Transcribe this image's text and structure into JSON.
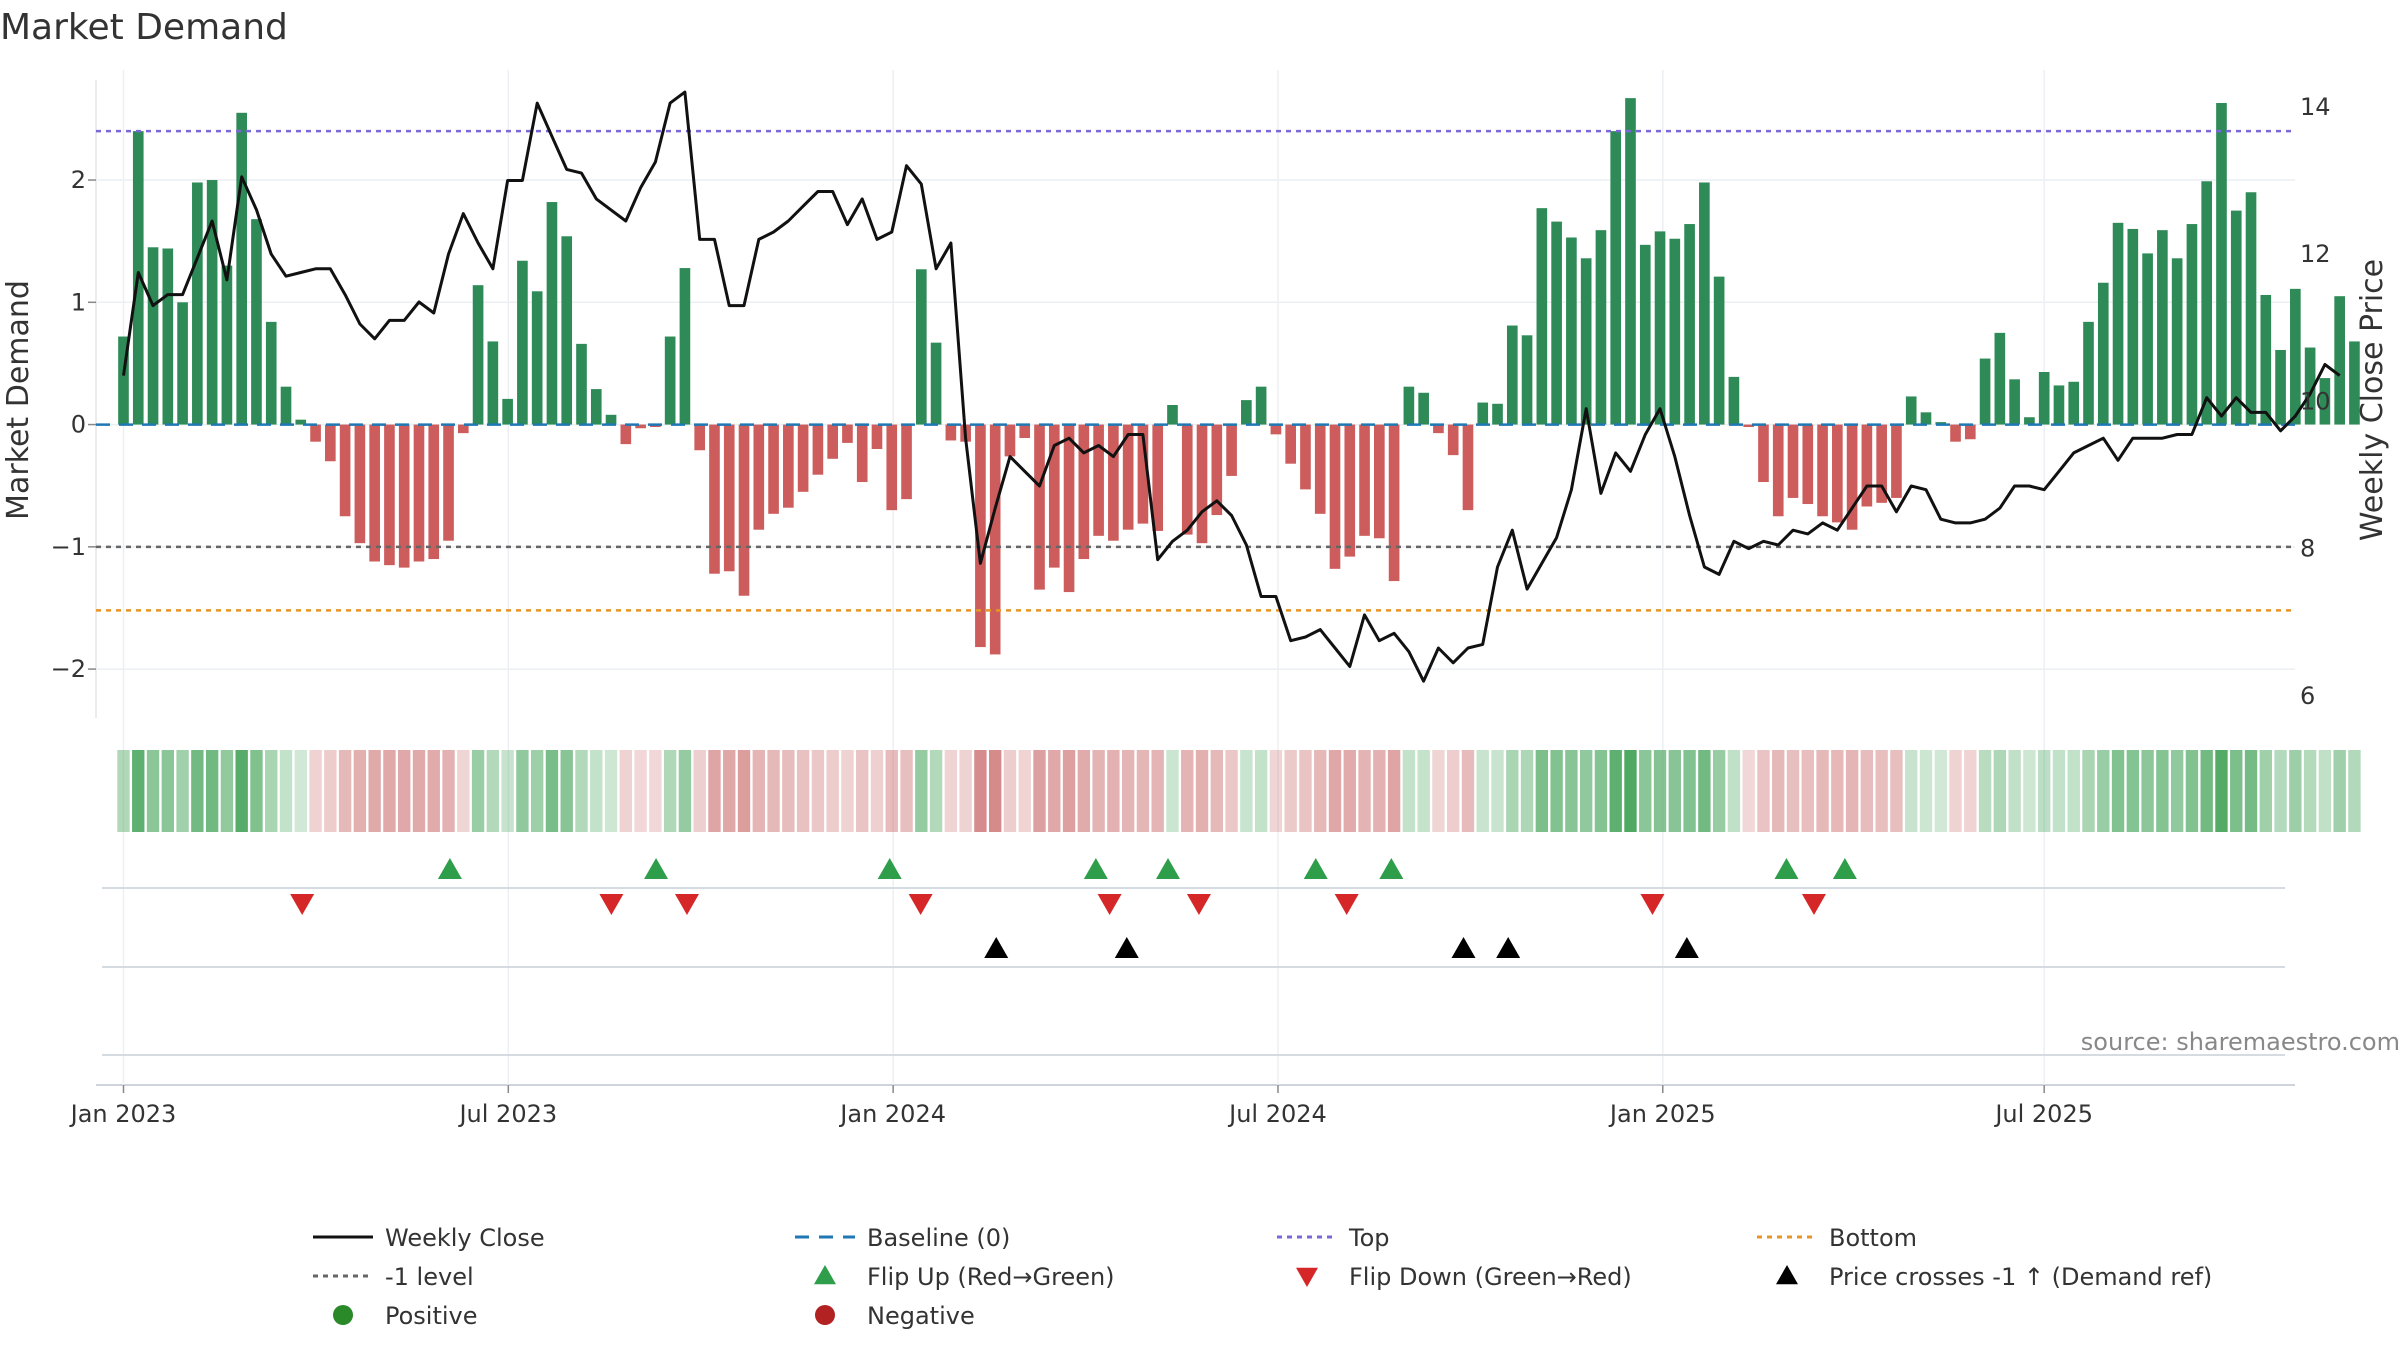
{
  "chart_data": {
    "type": "bar",
    "title": "Market Demand",
    "ylabel": "Market Demand",
    "y2label": "Weekly Close Price",
    "ylim": [
      -2.4,
      2.9
    ],
    "y2lim": [
      5.7,
      14.5
    ],
    "yticks": [
      -2,
      -1,
      0,
      1,
      2
    ],
    "yticklabels": [
      "−2",
      "−1",
      "0",
      "1",
      "2"
    ],
    "y2ticks": [
      6,
      8,
      10,
      12,
      14
    ],
    "y2ticklabels": [
      "6",
      "8",
      "10",
      "12",
      "14"
    ],
    "xlim_days": [
      -8,
      632
    ],
    "xticks": [
      {
        "day": 0,
        "label": "Jan 2023"
      },
      {
        "day": 112,
        "label": "Jul 2023"
      },
      {
        "day": 224,
        "label": "Jan 2024"
      },
      {
        "day": 336,
        "label": "Jul 2024"
      },
      {
        "day": 448,
        "label": "Jan 2025"
      },
      {
        "day": 559,
        "label": "Jul 2025"
      }
    ],
    "x_start": "2023-01-01",
    "x_step_days": 4.3,
    "demand": [
      0.72,
      2.4,
      1.45,
      1.44,
      1.0,
      1.98,
      2.0,
      1.3,
      2.55,
      1.68,
      0.84,
      0.31,
      0.04,
      -0.14,
      -0.3,
      -0.75,
      -0.97,
      -1.12,
      -1.15,
      -1.17,
      -1.12,
      -1.1,
      -0.95,
      -0.07,
      1.14,
      0.68,
      0.21,
      1.34,
      1.09,
      1.82,
      1.54,
      0.66,
      0.29,
      0.08,
      -0.16,
      -0.03,
      -0.02,
      0.72,
      1.28,
      -0.21,
      -1.22,
      -1.2,
      -1.4,
      -0.86,
      -0.73,
      -0.68,
      -0.55,
      -0.41,
      -0.28,
      -0.15,
      -0.47,
      -0.2,
      -0.7,
      -0.61,
      1.27,
      0.67,
      -0.13,
      -0.14,
      -1.82,
      -1.88,
      -0.26,
      -0.11,
      -1.35,
      -1.17,
      -1.37,
      -1.1,
      -0.91,
      -0.95,
      -0.86,
      -0.81,
      -0.87,
      0.16,
      -0.9,
      -0.97,
      -0.74,
      -0.42,
      0.2,
      0.31,
      -0.08,
      -0.32,
      -0.53,
      -0.73,
      -1.18,
      -1.08,
      -0.91,
      -0.93,
      -1.28,
      0.31,
      0.26,
      -0.07,
      -0.25,
      -0.7,
      0.18,
      0.17,
      0.81,
      0.73,
      1.77,
      1.66,
      1.53,
      1.36,
      1.59,
      2.4,
      2.67,
      1.47,
      1.58,
      1.52,
      1.64,
      1.98,
      1.21,
      0.39,
      -0.02,
      -0.47,
      -0.75,
      -0.6,
      -0.65,
      -0.75,
      -0.8,
      -0.86,
      -0.67,
      -0.64,
      -0.6,
      0.23,
      0.1,
      0.02,
      -0.14,
      -0.12,
      0.54,
      0.75,
      0.37,
      0.06,
      0.43,
      0.32,
      0.35,
      0.84,
      1.16,
      1.65,
      1.6,
      1.4,
      1.59,
      1.36,
      1.64,
      1.99,
      2.63,
      1.75,
      1.9,
      1.06,
      0.61,
      1.11,
      0.63,
      0.38,
      1.05,
      0.68
    ],
    "close": [
      10.35,
      11.75,
      11.3,
      11.45,
      11.45,
      11.95,
      12.45,
      11.65,
      13.05,
      12.6,
      12.0,
      11.7,
      11.75,
      11.8,
      11.8,
      11.45,
      11.05,
      10.85,
      11.1,
      11.1,
      11.35,
      11.2,
      12.0,
      12.55,
      12.15,
      11.8,
      13.0,
      13.0,
      14.05,
      13.6,
      13.15,
      13.1,
      12.75,
      12.6,
      12.45,
      12.9,
      13.25,
      14.05,
      14.2,
      12.2,
      12.2,
      11.3,
      11.3,
      12.2,
      12.3,
      12.45,
      12.65,
      12.85,
      12.85,
      12.4,
      12.75,
      12.2,
      12.3,
      13.2,
      12.95,
      11.8,
      12.15,
      9.5,
      7.8,
      8.55,
      9.25,
      9.05,
      8.85,
      9.4,
      9.5,
      9.3,
      9.4,
      9.25,
      9.55,
      9.55,
      7.85,
      8.1,
      8.25,
      8.5,
      8.65,
      8.45,
      8.05,
      7.35,
      7.35,
      6.75,
      6.8,
      6.9,
      6.65,
      6.4,
      7.1,
      6.75,
      6.85,
      6.6,
      6.2,
      6.65,
      6.45,
      6.65,
      6.7,
      7.75,
      8.25,
      7.45,
      7.8,
      8.15,
      8.8,
      9.9,
      8.75,
      9.3,
      9.05,
      9.55,
      9.9,
      9.25,
      8.45,
      7.75,
      7.65,
      8.1,
      8.0,
      8.1,
      8.05,
      8.25,
      8.2,
      8.35,
      8.25,
      8.55,
      8.85,
      8.85,
      8.5,
      8.85,
      8.8,
      8.4,
      8.35,
      8.35,
      8.4,
      8.55,
      8.85,
      8.85,
      8.8,
      9.05,
      9.3,
      9.4,
      9.5,
      9.2,
      9.5,
      9.5,
      9.5,
      9.55,
      9.55,
      10.05,
      9.8,
      10.05,
      9.85,
      9.85,
      9.6,
      9.8,
      10.1,
      10.5,
      10.35
    ],
    "reference_lines": {
      "baseline": 0,
      "top": 2.4,
      "bottom": -1.52,
      "minus_one_level": -1
    },
    "flip_up_days": [
      95,
      155,
      223,
      283,
      304,
      347,
      369,
      484,
      501
    ],
    "flip_down_days": [
      52,
      142,
      164,
      232,
      287,
      313,
      356,
      445,
      492
    ],
    "price_cross_days": [
      254,
      292,
      390,
      403,
      455
    ],
    "source_text": "source: sharemaestro.com",
    "legend": [
      {
        "label": "Weekly Close",
        "style": "solid-line",
        "color": "#111111"
      },
      {
        "label": "Baseline (0)",
        "style": "dashed-line",
        "color": "#1f77b4"
      },
      {
        "label": "Top",
        "style": "dotted-line",
        "color": "#7b68d8"
      },
      {
        "label": "Bottom",
        "style": "dotted-line",
        "color": "#e69526"
      },
      {
        "label": "-1 level",
        "style": "dotted-line",
        "color": "#666666"
      },
      {
        "label": "Flip Up (Red→Green)",
        "style": "triangle-up",
        "color": "#2e9e4a"
      },
      {
        "label": "Flip Down (Green→Red)",
        "style": "triangle-down",
        "color": "#d62728"
      },
      {
        "label": "Price crosses -1 ↑ (Demand ref)",
        "style": "triangle-up",
        "color": "#000000"
      },
      {
        "label": "Positive",
        "style": "circle",
        "color": "#2a8a2a"
      },
      {
        "label": "Negative",
        "style": "circle",
        "color": "#b22222"
      }
    ],
    "colors": {
      "positive_bar": "#2e8a57",
      "negative_bar": "#cd5c5c",
      "strip_positive": "#4aa65e",
      "strip_negative": "#c86464",
      "flip_up": "#2e9e4a",
      "flip_down": "#d62728",
      "price_cross": "#000000",
      "close_line": "#111111",
      "baseline": "#1f77b4",
      "top": "#7b68d8",
      "bottom": "#e69526",
      "minus_one": "#666666"
    }
  }
}
